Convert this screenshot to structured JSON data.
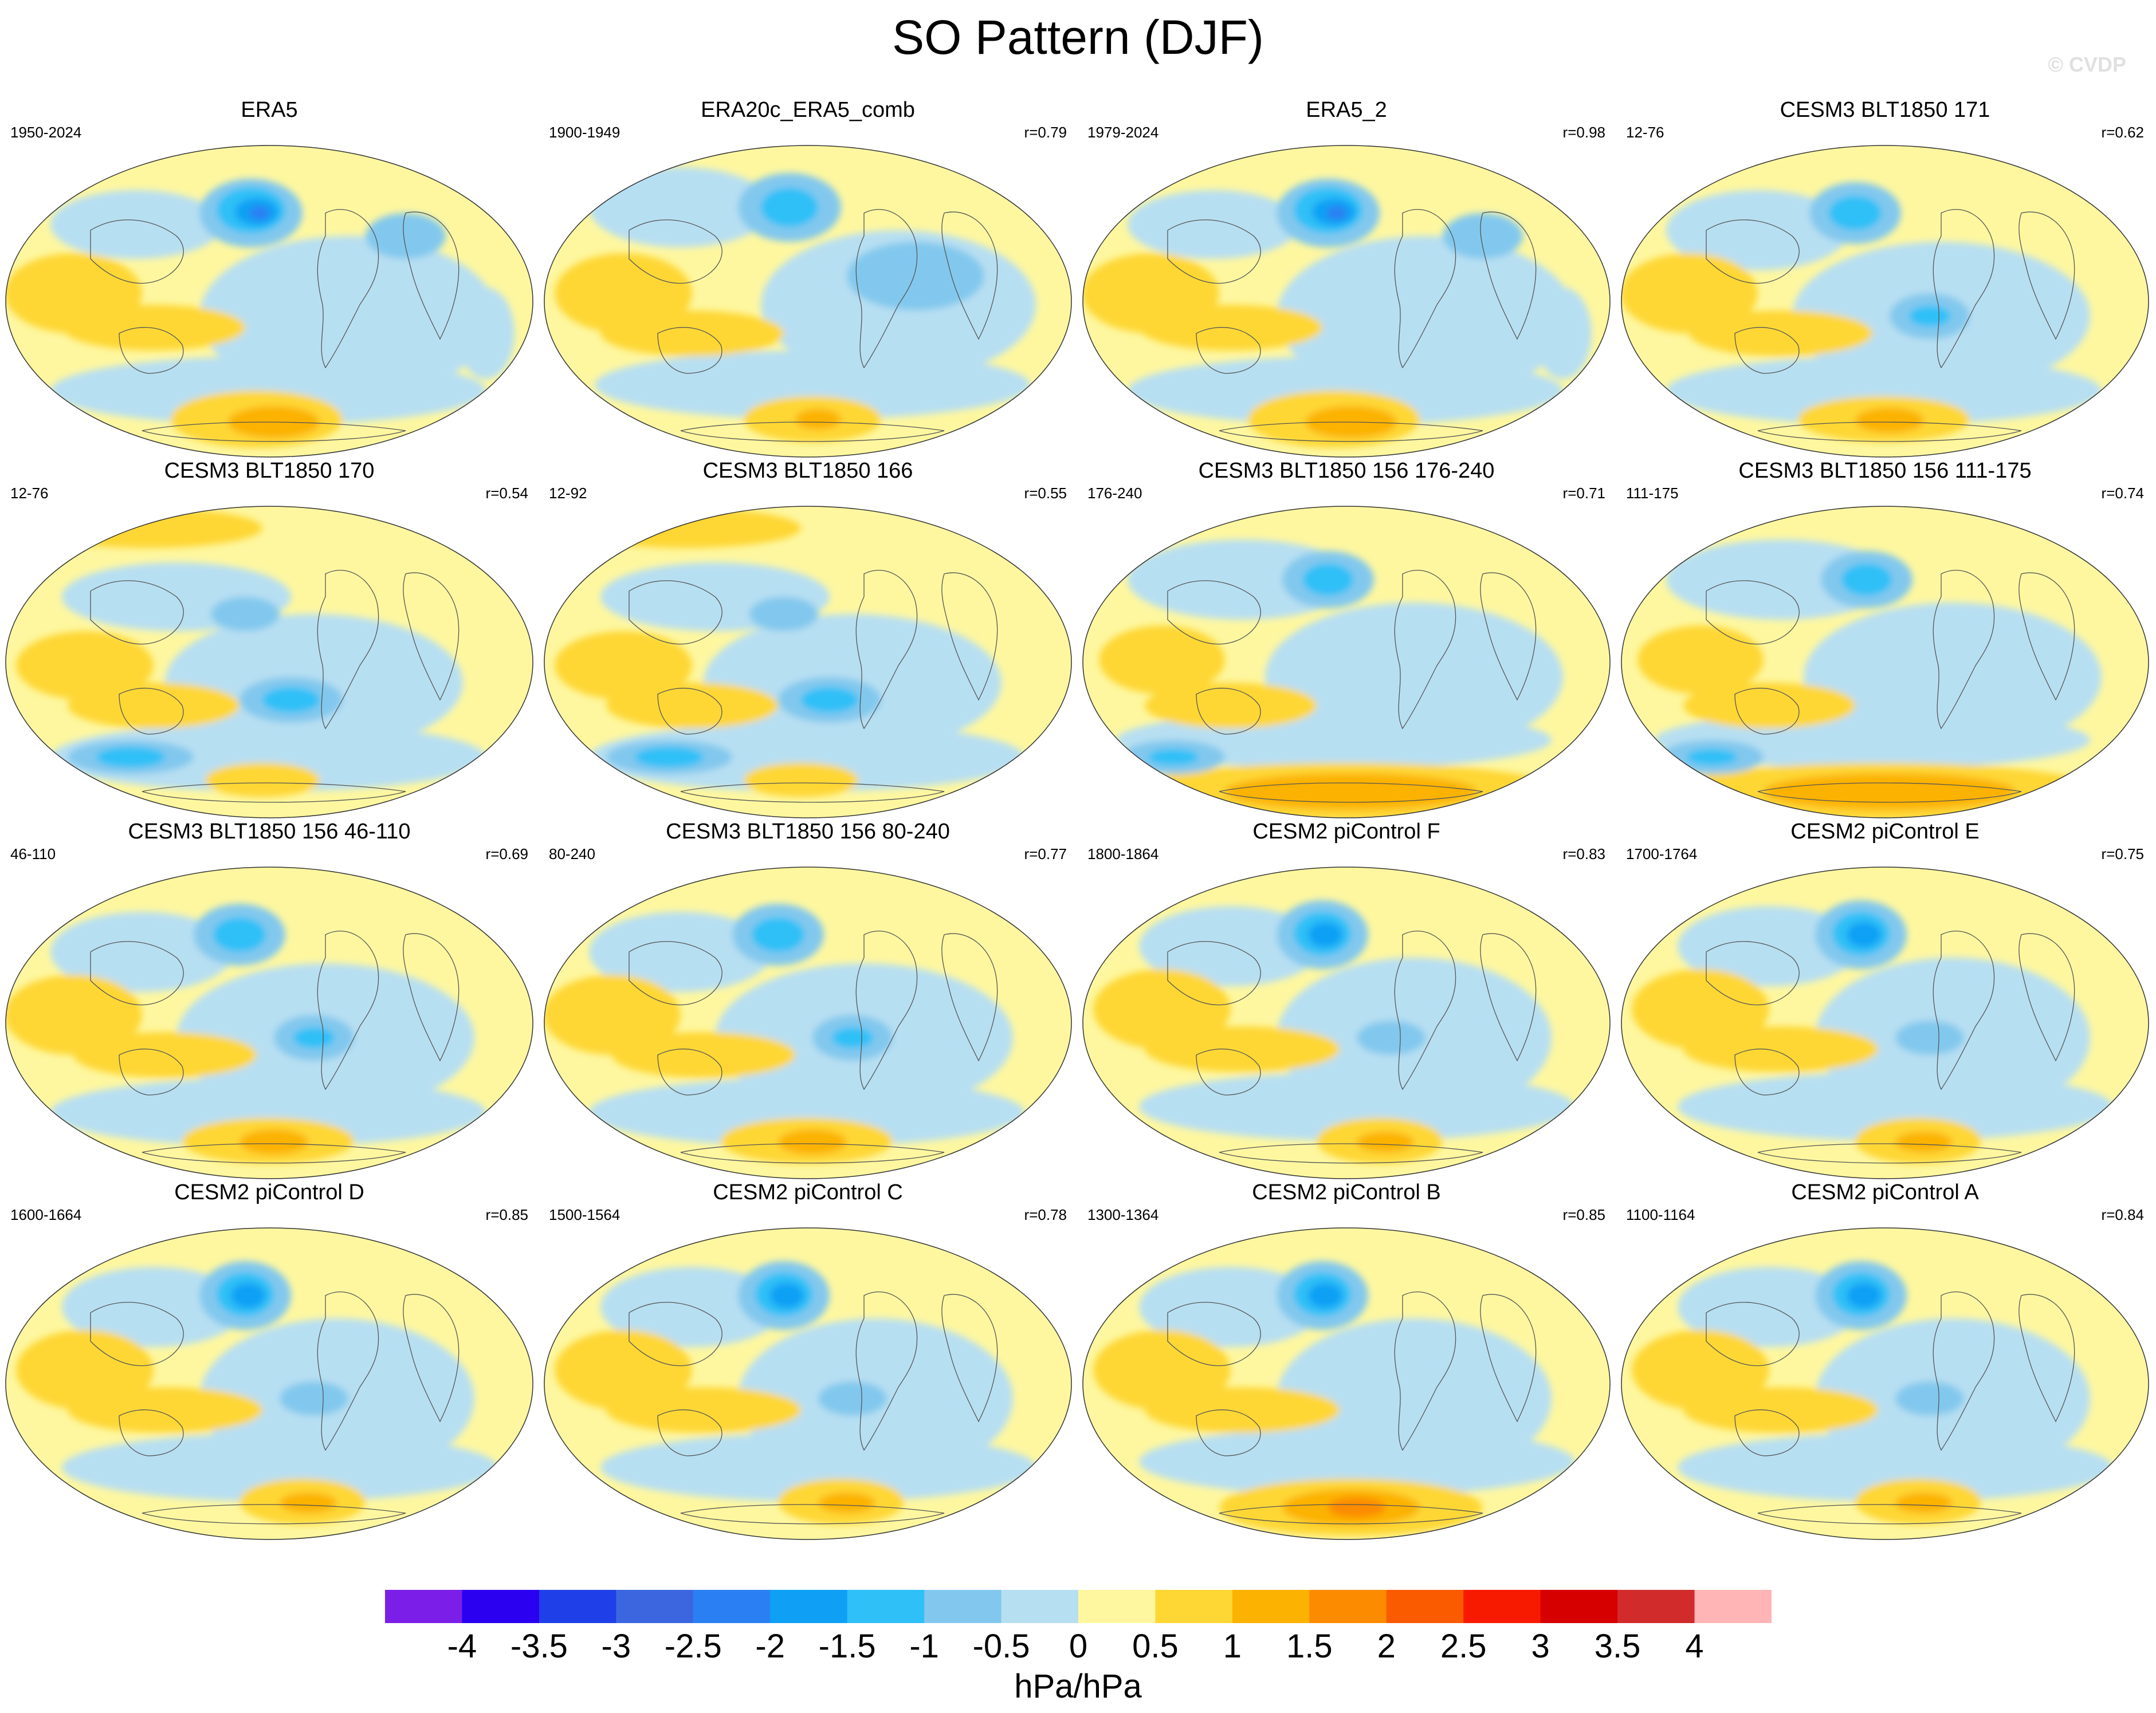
{
  "title": "SO Pattern (DJF)",
  "watermark": "© CVDP",
  "units": "hPa/hPa",
  "colorbar": {
    "labels": [
      "-4",
      "-3.5",
      "-3",
      "-2.5",
      "-2",
      "-1.5",
      "-1",
      "-0.5",
      "0",
      "0.5",
      "1",
      "1.5",
      "2",
      "2.5",
      "3",
      "3.5",
      "4"
    ],
    "colors": [
      "#7b1fe8",
      "#2b00f0",
      "#1f3fe8",
      "#3b66e0",
      "#2a80f2",
      "#0fa0f5",
      "#2ec0f7",
      "#82c8ee",
      "#b7dff2",
      "#fef7a0",
      "#fed734",
      "#fcb200",
      "#fc8b00",
      "#fa5a00",
      "#f81a00",
      "#d60000",
      "#d22b2b",
      "#ffb5b5"
    ]
  },
  "panels": [
    {
      "title": "ERA5",
      "years": "1950-2024",
      "corr": "",
      "pattern": "era5"
    },
    {
      "title": "ERA20c_ERA5_comb",
      "years": "1900-1949",
      "corr": "r=0.79",
      "pattern": "era20c"
    },
    {
      "title": "ERA5_2",
      "years": "1979-2024",
      "corr": "r=0.98",
      "pattern": "era5"
    },
    {
      "title": "CESM3 BLT1850 171",
      "years": "12-76",
      "corr": "r=0.62",
      "pattern": "cesm3a"
    },
    {
      "title": "CESM3 BLT1850 170",
      "years": "12-76",
      "corr": "r=0.54",
      "pattern": "cesm3b"
    },
    {
      "title": "CESM3 BLT1850 166",
      "years": "12-92",
      "corr": "r=0.55",
      "pattern": "cesm3b"
    },
    {
      "title": "CESM3 BLT1850 156 176-240",
      "years": "176-240",
      "corr": "r=0.71",
      "pattern": "cesm3c"
    },
    {
      "title": "CESM3 BLT1850 156 111-175",
      "years": "111-175",
      "corr": "r=0.74",
      "pattern": "cesm3c"
    },
    {
      "title": "CESM3 BLT1850 156 46-110",
      "years": "46-110",
      "corr": "r=0.69",
      "pattern": "cesm3a"
    },
    {
      "title": "CESM3 BLT1850 156 80-240",
      "years": "80-240",
      "corr": "r=0.77",
      "pattern": "cesm3a"
    },
    {
      "title": "CESM2 piControl F",
      "years": "1800-1864",
      "corr": "r=0.83",
      "pattern": "cesm2"
    },
    {
      "title": "CESM2 piControl E",
      "years": "1700-1764",
      "corr": "r=0.75",
      "pattern": "cesm2"
    },
    {
      "title": "CESM2 piControl D",
      "years": "1600-1664",
      "corr": "r=0.85",
      "pattern": "cesm2"
    },
    {
      "title": "CESM2 piControl C",
      "years": "1500-1564",
      "corr": "r=0.78",
      "pattern": "cesm2"
    },
    {
      "title": "CESM2 piControl B",
      "years": "1300-1364",
      "corr": "r=0.85",
      "pattern": "cesm2b"
    },
    {
      "title": "CESM2 piControl A",
      "years": "1100-1164",
      "corr": "r=0.84",
      "pattern": "cesm2"
    }
  ]
}
